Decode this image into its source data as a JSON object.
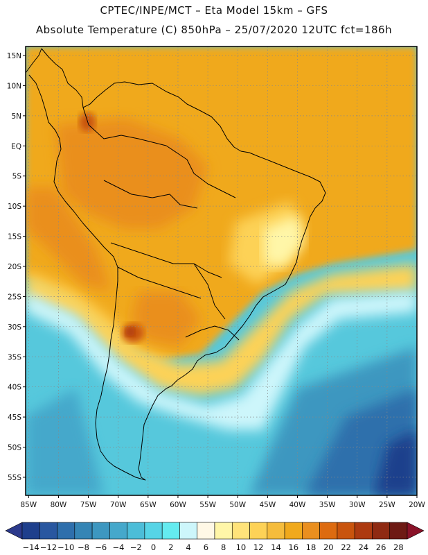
{
  "header": {
    "line1": "CPTEC/INPE/MCT –  Eta Model 15km – GFS",
    "line2": "Absolute Temperature (C) 850hPa – 25/07/2020 12UTC fct=186h"
  },
  "map": {
    "lat_labels": [
      "15N",
      "10N",
      "5N",
      "EQ",
      "5S",
      "10S",
      "15S",
      "20S",
      "25S",
      "30S",
      "35S",
      "40S",
      "45S",
      "50S",
      "55S"
    ],
    "lon_labels": [
      "85W",
      "80W",
      "75W",
      "70W",
      "65W",
      "60W",
      "55W",
      "50W",
      "45W",
      "40W",
      "35W",
      "30W",
      "25W",
      "20W"
    ],
    "lat_range": [
      -58,
      16.5
    ],
    "lon_range": [
      -85.5,
      -20
    ]
  },
  "colorbar": {
    "labels": [
      "-14",
      "-12",
      "-10",
      "-8",
      "-6",
      "-4",
      "-2",
      "0",
      "2",
      "4",
      "6",
      "8",
      "10",
      "12",
      "14",
      "16",
      "18",
      "20",
      "22",
      "24",
      "26",
      "28"
    ],
    "colors": [
      "#1e3f8c",
      "#2957a0",
      "#2e6fac",
      "#3585b5",
      "#3d97c0",
      "#45a8cb",
      "#4cbdd8",
      "#56d4e6",
      "#64ebf0",
      "#cdf6fb",
      "#fff8e6",
      "#fff6a8",
      "#ffe37a",
      "#fdd257",
      "#f5bc3c",
      "#f0a91c",
      "#ea8f1f",
      "#dd6b10",
      "#c9540d",
      "#ad3a10",
      "#8f2a12",
      "#6e1a14"
    ],
    "under_color": "#2c3a8c",
    "over_color": "#8a1228"
  }
}
